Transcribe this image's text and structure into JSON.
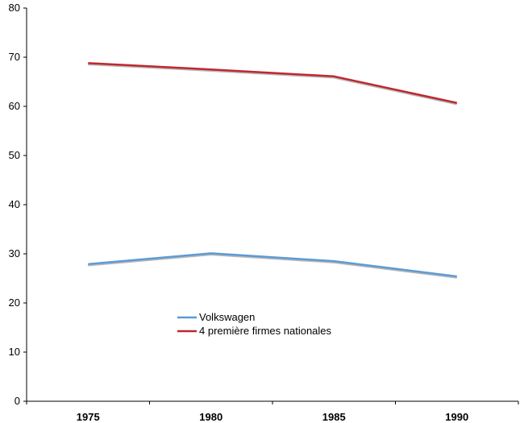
{
  "chart_data": {
    "type": "line",
    "categories": [
      "1975",
      "1980",
      "1985",
      "1990"
    ],
    "series": [
      {
        "name": "Volkswagen",
        "values": [
          27.9,
          30.1,
          28.5,
          25.4
        ],
        "color": "#5b9bd5"
      },
      {
        "name": "4 première firmes nationales",
        "values": [
          68.8,
          67.5,
          66.1,
          60.7
        ],
        "color": "#c0272d"
      }
    ],
    "title": "",
    "xlabel": "",
    "ylabel": "",
    "ylim": [
      0,
      80
    ],
    "yticks": [
      "0",
      "10",
      "20",
      "30",
      "40",
      "50",
      "60",
      "70",
      "80"
    ],
    "grid": false,
    "legend_position": "lower-center"
  }
}
